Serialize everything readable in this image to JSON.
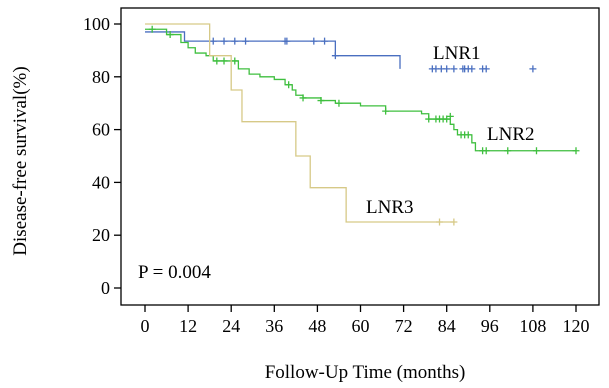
{
  "chart_data": {
    "type": "line",
    "subtype": "kaplan-meier-step",
    "xlabel": "Follow-Up Time (months)",
    "ylabel": "Disease-free survival(%)",
    "xlim": [
      0,
      120
    ],
    "ylim": [
      0,
      100
    ],
    "x_ticks": [
      0,
      12,
      24,
      36,
      48,
      60,
      72,
      84,
      96,
      108,
      120
    ],
    "y_ticks": [
      0,
      20,
      40,
      60,
      80,
      100
    ],
    "grid": false,
    "legend": "none",
    "annotation": "P = 0.004",
    "series": [
      {
        "name": "LNR1",
        "color": "#4a6fc0",
        "steps": [
          [
            0,
            97
          ],
          [
            11,
            93.5
          ],
          [
            53,
            88
          ],
          [
            71,
            83
          ],
          [
            71,
            83
          ]
        ],
        "censored": [
          [
            19,
            93.5
          ],
          [
            22,
            93.5
          ],
          [
            25,
            93.5
          ],
          [
            28,
            93.5
          ],
          [
            39,
            93.5
          ],
          [
            39.5,
            93.5
          ],
          [
            47,
            93.5
          ],
          [
            50,
            93.5
          ],
          [
            53,
            88
          ],
          [
            80,
            83
          ],
          [
            81,
            83
          ],
          [
            82.5,
            83
          ],
          [
            84,
            83
          ],
          [
            86,
            83
          ],
          [
            88.5,
            83
          ],
          [
            89,
            83
          ],
          [
            90,
            83
          ],
          [
            91,
            83
          ],
          [
            94,
            83
          ],
          [
            95,
            83
          ],
          [
            108,
            83
          ]
        ]
      },
      {
        "name": "LNR2",
        "color": "#3fbf3f",
        "steps": [
          [
            0,
            98
          ],
          [
            6,
            96
          ],
          [
            10,
            93
          ],
          [
            12,
            91
          ],
          [
            14,
            89
          ],
          [
            17,
            88
          ],
          [
            19,
            86
          ],
          [
            26,
            83
          ],
          [
            29,
            81
          ],
          [
            32,
            80
          ],
          [
            36,
            79
          ],
          [
            39,
            77
          ],
          [
            41,
            75
          ],
          [
            42,
            73
          ],
          [
            44,
            72
          ],
          [
            49,
            71
          ],
          [
            53,
            70
          ],
          [
            60,
            69
          ],
          [
            67,
            67
          ],
          [
            77,
            66
          ],
          [
            79,
            64
          ],
          [
            85,
            62
          ],
          [
            86,
            60
          ],
          [
            87,
            58
          ],
          [
            91,
            55
          ],
          [
            92,
            52
          ],
          [
            120,
            52
          ]
        ],
        "censored": [
          [
            2,
            98
          ],
          [
            7,
            96
          ],
          [
            20,
            86
          ],
          [
            22,
            86
          ],
          [
            25,
            86
          ],
          [
            40,
            77
          ],
          [
            44,
            72
          ],
          [
            49,
            71
          ],
          [
            54,
            70
          ],
          [
            67,
            67
          ],
          [
            79,
            64
          ],
          [
            81,
            64
          ],
          [
            82,
            64
          ],
          [
            83,
            64
          ],
          [
            84,
            64
          ],
          [
            85,
            65
          ],
          [
            88,
            58
          ],
          [
            89,
            58
          ],
          [
            90,
            58
          ],
          [
            94,
            52
          ],
          [
            95,
            52
          ],
          [
            101,
            52
          ],
          [
            109,
            52
          ],
          [
            120,
            52
          ]
        ]
      },
      {
        "name": "LNR3",
        "color": "#d6c987",
        "steps": [
          [
            0,
            100
          ],
          [
            18,
            88
          ],
          [
            21,
            88
          ],
          [
            24,
            75
          ],
          [
            27,
            63
          ],
          [
            42,
            50
          ],
          [
            46,
            38
          ],
          [
            52,
            38
          ],
          [
            56,
            25
          ],
          [
            86,
            25
          ]
        ],
        "censored": [
          [
            82,
            25
          ],
          [
            86,
            25
          ]
        ]
      }
    ]
  },
  "labels": {
    "lnr1": "LNR1",
    "lnr2": "LNR2",
    "lnr3": "LNR3",
    "pval": "P = 0.004"
  }
}
